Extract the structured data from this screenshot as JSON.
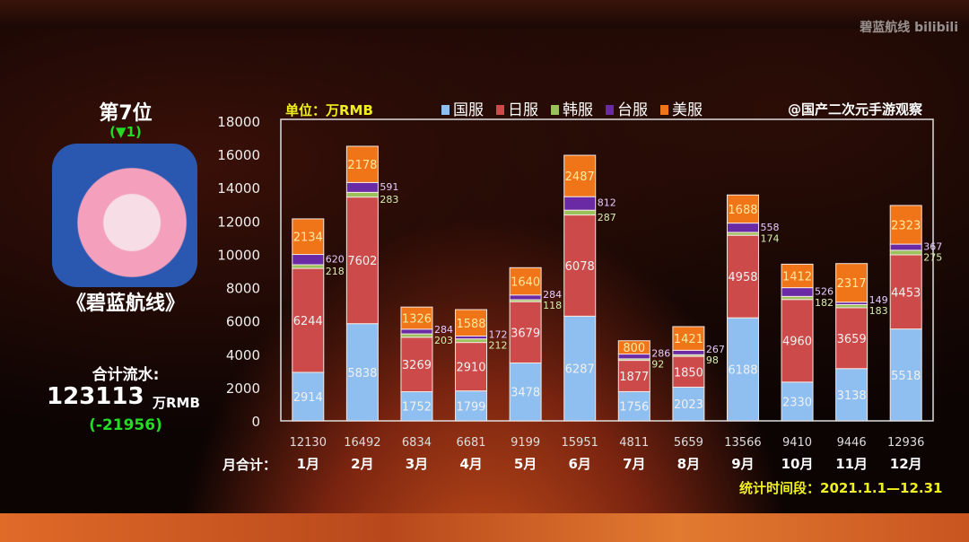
{
  "watermark": "碧蓝航线 bilibili",
  "left_panel": {
    "rank": "第7位",
    "rank_change": "(▼1)",
    "game_title": "《碧蓝航线》",
    "total_label": "合计流水:",
    "total_value": "123113",
    "total_unit": "万RMB",
    "total_diff": "(-21956)"
  },
  "unit_label": "单位：万RMB",
  "source": "@国产二次元手游观察",
  "month_total_label": "月合计：",
  "period": "统计时间段：2021.1.1—12.31",
  "colors": {
    "国服": "#8fbff0",
    "日服": "#cc4a4a",
    "韩服": "#9bc25a",
    "台服": "#6a2aa6",
    "美服": "#f07418"
  },
  "chart_data": {
    "type": "bar",
    "stacked": true,
    "title": "",
    "xlabel": "",
    "ylabel": "",
    "ylim": [
      0,
      18000
    ],
    "yticks": [
      0,
      2000,
      4000,
      6000,
      8000,
      10000,
      12000,
      14000,
      16000,
      18000
    ],
    "legend_placement": "top",
    "categories": [
      "1月",
      "2月",
      "3月",
      "4月",
      "5月",
      "6月",
      "7月",
      "8月",
      "9月",
      "10月",
      "11月",
      "12月"
    ],
    "series": [
      {
        "name": "国服",
        "values": [
          2914,
          5838,
          1752,
          1799,
          3478,
          6287,
          1756,
          2023,
          6188,
          2330,
          3138,
          5518
        ]
      },
      {
        "name": "日服",
        "values": [
          6244,
          7602,
          3269,
          2910,
          3679,
          6078,
          1877,
          1850,
          4958,
          4960,
          3659,
          4453
        ]
      },
      {
        "name": "韩服",
        "values": [
          218,
          283,
          203,
          212,
          118,
          287,
          92,
          98,
          174,
          182,
          183,
          275
        ]
      },
      {
        "name": "台服",
        "values": [
          620,
          591,
          284,
          172,
          284,
          812,
          286,
          267,
          558,
          526,
          149,
          367
        ]
      },
      {
        "name": "美服",
        "values": [
          2134,
          2178,
          1326,
          1588,
          1640,
          2487,
          800,
          1421,
          1688,
          1412,
          2317,
          2323
        ]
      }
    ],
    "totals": [
      12130,
      16492,
      6834,
      6681,
      9199,
      15951,
      4811,
      5659,
      13566,
      9410,
      9446,
      12936
    ]
  }
}
